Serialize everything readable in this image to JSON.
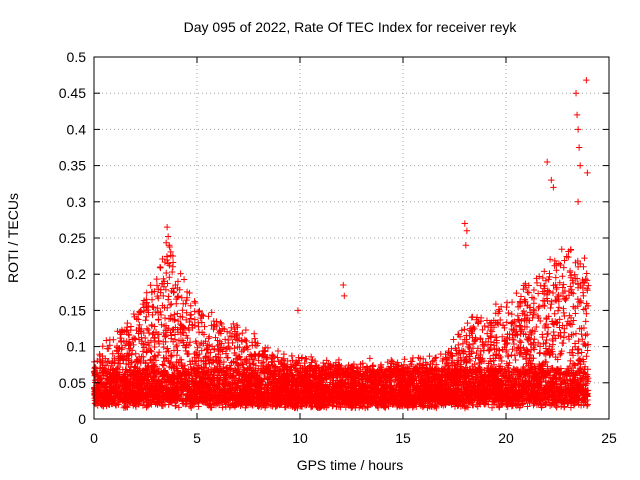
{
  "chart_data": {
    "type": "scatter",
    "title": "Day 095 of 2022, Rate Of TEC Index for receiver reyk",
    "xlabel": "GPS time / hours",
    "ylabel": "ROTI / TECUs",
    "xlim": [
      0,
      25
    ],
    "ylim": [
      0,
      0.5
    ],
    "x_ticks": [
      0,
      5,
      10,
      15,
      20,
      25
    ],
    "x_tick_labels": [
      "0",
      "5",
      "10",
      "15",
      "20",
      "25"
    ],
    "y_ticks": [
      0,
      0.05,
      0.1,
      0.15,
      0.2,
      0.25,
      0.3,
      0.35,
      0.4,
      0.45,
      0.5
    ],
    "y_tick_labels": [
      "0",
      "0.05",
      "0.1",
      "0.15",
      "0.2",
      "0.25",
      "0.3",
      "0.35",
      "0.4",
      "0.45",
      "0.5"
    ],
    "grid": true,
    "marker": "+",
    "marker_color": "#ff0000",
    "series": [
      {
        "name": "ROTI",
        "description_points": "dense band of ROTI samples over 0-24 h",
        "envelope": [
          {
            "t": 0.0,
            "base": 0.03,
            "top": 0.09
          },
          {
            "t": 1.0,
            "base": 0.03,
            "top": 0.12
          },
          {
            "t": 2.0,
            "base": 0.03,
            "top": 0.15
          },
          {
            "t": 3.0,
            "base": 0.03,
            "top": 0.2
          },
          {
            "t": 3.6,
            "base": 0.03,
            "top": 0.26
          },
          {
            "t": 4.5,
            "base": 0.03,
            "top": 0.18
          },
          {
            "t": 5.5,
            "base": 0.03,
            "top": 0.15
          },
          {
            "t": 7.0,
            "base": 0.025,
            "top": 0.13
          },
          {
            "t": 9.0,
            "base": 0.025,
            "top": 0.09
          },
          {
            "t": 11.0,
            "base": 0.025,
            "top": 0.08
          },
          {
            "t": 13.0,
            "base": 0.025,
            "top": 0.08
          },
          {
            "t": 15.0,
            "base": 0.025,
            "top": 0.08
          },
          {
            "t": 17.0,
            "base": 0.03,
            "top": 0.09
          },
          {
            "t": 18.0,
            "base": 0.03,
            "top": 0.14
          },
          {
            "t": 19.0,
            "base": 0.03,
            "top": 0.15
          },
          {
            "t": 20.5,
            "base": 0.03,
            "top": 0.18
          },
          {
            "t": 22.0,
            "base": 0.03,
            "top": 0.22
          },
          {
            "t": 23.0,
            "base": 0.03,
            "top": 0.24
          },
          {
            "t": 24.0,
            "base": 0.03,
            "top": 0.22
          }
        ],
        "outliers": [
          {
            "x": 3.55,
            "y": 0.265
          },
          {
            "x": 3.6,
            "y": 0.252
          },
          {
            "x": 3.65,
            "y": 0.24
          },
          {
            "x": 12.1,
            "y": 0.185
          },
          {
            "x": 12.15,
            "y": 0.17
          },
          {
            "x": 9.9,
            "y": 0.15
          },
          {
            "x": 18.0,
            "y": 0.27
          },
          {
            "x": 18.1,
            "y": 0.26
          },
          {
            "x": 18.05,
            "y": 0.24
          },
          {
            "x": 22.0,
            "y": 0.355
          },
          {
            "x": 22.2,
            "y": 0.33
          },
          {
            "x": 23.4,
            "y": 0.45
          },
          {
            "x": 23.45,
            "y": 0.42
          },
          {
            "x": 23.5,
            "y": 0.4
          },
          {
            "x": 23.9,
            "y": 0.468
          },
          {
            "x": 23.6,
            "y": 0.35
          },
          {
            "x": 23.95,
            "y": 0.34
          },
          {
            "x": 23.5,
            "y": 0.3
          },
          {
            "x": 23.55,
            "y": 0.375
          },
          {
            "x": 22.3,
            "y": 0.32
          }
        ]
      }
    ]
  }
}
